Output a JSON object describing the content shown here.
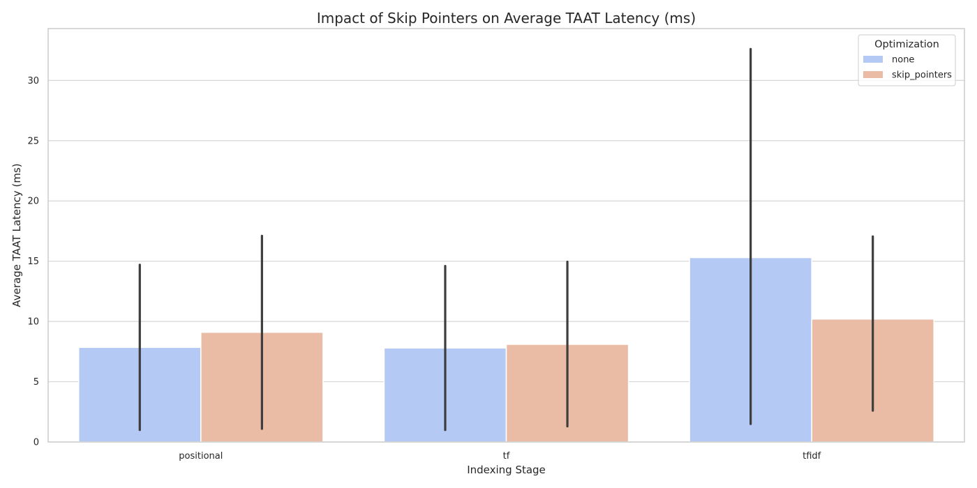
{
  "chart_data": {
    "type": "bar",
    "title": "Impact of Skip Pointers on Average TAAT Latency (ms)",
    "xlabel": "Indexing Stage",
    "ylabel": "Average TAAT Latency (ms)",
    "categories": [
      "positional",
      "tf",
      "tfidf"
    ],
    "ylim": [
      0,
      34.3
    ],
    "yticks": [
      0,
      5,
      10,
      15,
      20,
      25,
      30
    ],
    "grid": true,
    "legend": {
      "title": "Optimization",
      "position": "top-right"
    },
    "series": [
      {
        "name": "none",
        "color": "#b4c9f4",
        "values": [
          7.85,
          7.8,
          15.3
        ],
        "error_low": [
          1.0,
          1.0,
          1.5
        ],
        "error_high": [
          14.7,
          14.6,
          32.6
        ]
      },
      {
        "name": "skip_pointers",
        "color": "#ebbca5",
        "values": [
          9.1,
          8.1,
          10.2
        ],
        "error_low": [
          1.1,
          1.3,
          2.6
        ],
        "error_high": [
          17.1,
          14.95,
          17.05
        ]
      }
    ],
    "colors": {
      "grid": "#d6d6d6",
      "frame": "#cccccc",
      "errorbar": "#3d3d3d",
      "text": "#262626"
    }
  }
}
